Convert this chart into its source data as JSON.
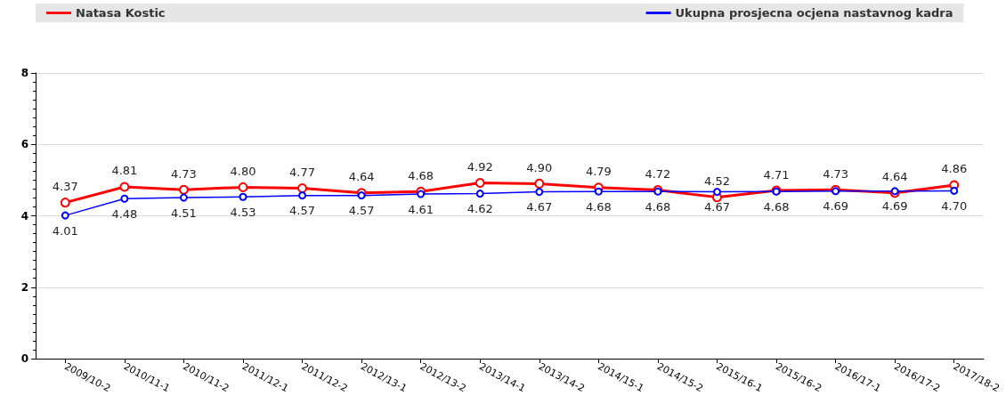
{
  "chart_data": {
    "type": "line",
    "categories": [
      "2009/10-2",
      "2010/11-1",
      "2010/11-2",
      "2011/12-1",
      "2011/12-2",
      "2012/13-1",
      "2012/13-2",
      "2013/14-1",
      "2013/14-2",
      "2014/15-1",
      "2014/15-2",
      "2015/16-1",
      "2015/16-2",
      "2016/17-1",
      "2016/17-2",
      "2017/18-2"
    ],
    "series": [
      {
        "name": "Natasa Kostic",
        "color": "#ff0000",
        "values": [
          4.37,
          4.81,
          4.73,
          4.8,
          4.77,
          4.64,
          4.68,
          4.92,
          4.9,
          4.79,
          4.72,
          4.52,
          4.71,
          4.73,
          4.64,
          4.86
        ],
        "value_labels": [
          "4.37",
          "4.81",
          "4.73",
          "4.80",
          "4.77",
          "4.64",
          "4.68",
          "4.92",
          "4.90",
          "4.79",
          "4.72",
          "4.52",
          "4.71",
          "4.73",
          "4.64",
          "4.86"
        ]
      },
      {
        "name": "Ukupna prosjecna ocjena nastavnog kadra",
        "color": "#0000ff",
        "values": [
          4.01,
          4.48,
          4.51,
          4.53,
          4.57,
          4.57,
          4.61,
          4.62,
          4.67,
          4.68,
          4.68,
          4.67,
          4.68,
          4.69,
          4.69,
          4.7
        ],
        "value_labels": [
          "4.01",
          "4.48",
          "4.51",
          "4.53",
          "4.57",
          "4.57",
          "4.61",
          "4.62",
          "4.67",
          "4.68",
          "4.68",
          "4.67",
          "4.68",
          "4.69",
          "4.69",
          "4.70"
        ]
      }
    ],
    "ylim": [
      0,
      8
    ],
    "yticks": [
      0,
      2,
      4,
      6,
      8
    ],
    "grid": "y",
    "legend": "top",
    "marker": "circle"
  }
}
